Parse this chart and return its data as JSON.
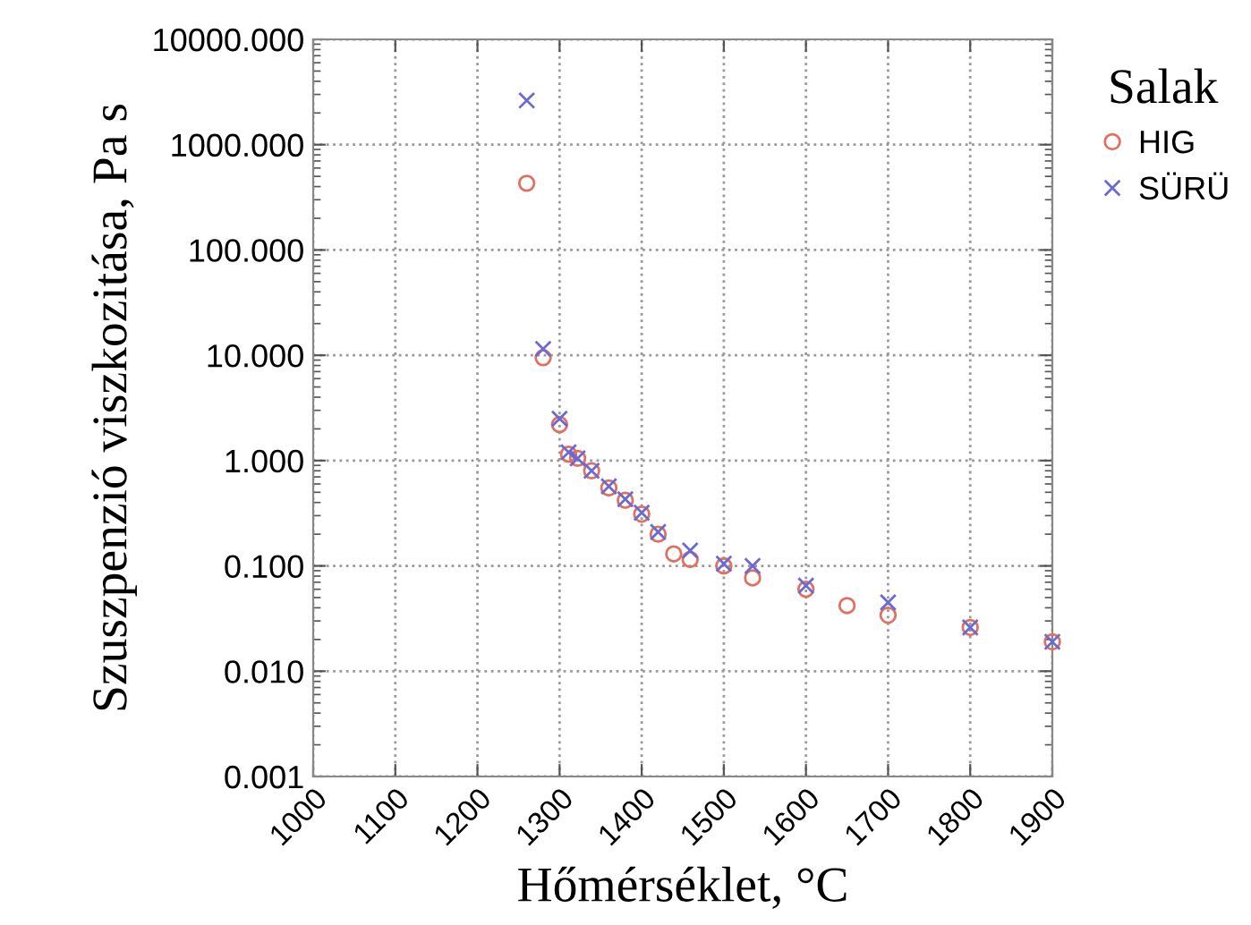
{
  "chart_data": {
    "type": "scatter",
    "xlabel": "Hőmérséklet, °C",
    "ylabel": "Szuszpenzió viszkozitása, Pa s",
    "legend_title": "Salak",
    "series": [
      {
        "name": "HIG",
        "color": "#e07060",
        "marker": "circle",
        "x": [
          1260,
          1280,
          1300,
          1311,
          1322,
          1339,
          1360,
          1380,
          1400,
          1420,
          1439,
          1459,
          1500,
          1535,
          1600,
          1650,
          1700,
          1800,
          1900
        ],
        "values": [
          430,
          9.5,
          2.2,
          1.15,
          1.05,
          0.8,
          0.55,
          0.42,
          0.31,
          0.2,
          0.13,
          0.115,
          0.1,
          0.077,
          0.06,
          0.042,
          0.034,
          0.026,
          0.019
        ]
      },
      {
        "name": "SÜRÜ",
        "color": "#6a6ad0",
        "marker": "cross",
        "x": [
          1260,
          1280,
          1300,
          1311,
          1322,
          1339,
          1360,
          1380,
          1400,
          1420,
          1459,
          1500,
          1535,
          1600,
          1700,
          1800,
          1900
        ],
        "values": [
          2630,
          11.5,
          2.5,
          1.2,
          1.05,
          0.8,
          0.57,
          0.43,
          0.32,
          0.21,
          0.14,
          0.105,
          0.1,
          0.065,
          0.045,
          0.026,
          0.019
        ]
      }
    ],
    "log": "y",
    "xlim": [
      1000,
      1900
    ],
    "ylim": [
      0.001,
      10000
    ],
    "xticks": [
      1000,
      1100,
      1200,
      1300,
      1400,
      1500,
      1600,
      1700,
      1800,
      1900
    ],
    "yticks": [
      {
        "value": 0.001,
        "label": "0.001"
      },
      {
        "value": 0.01,
        "label": "0.010"
      },
      {
        "value": 0.1,
        "label": "0.100"
      },
      {
        "value": 1,
        "label": "1.000"
      },
      {
        "value": 10,
        "label": "10.000"
      },
      {
        "value": 100,
        "label": "100.000"
      },
      {
        "value": 1000,
        "label": "1000.000"
      },
      {
        "value": 10000,
        "label": "10000.000"
      }
    ],
    "grid": true,
    "legend": "right"
  }
}
